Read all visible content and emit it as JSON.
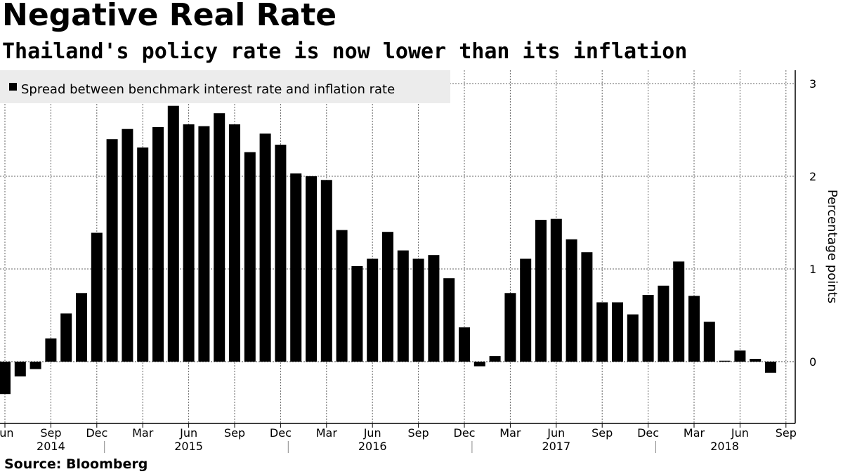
{
  "title": "Negative Real Rate",
  "subtitle": "Thailand's policy rate is now lower than its inflation",
  "source": "Source: Bloomberg",
  "chart_data": {
    "type": "bar",
    "series": [
      {
        "name": "Spread between benchmark interest rate and inflation rate",
        "color": "#000000",
        "values": [
          -0.35,
          -0.16,
          -0.08,
          0.25,
          0.52,
          0.74,
          1.39,
          2.4,
          2.51,
          2.31,
          2.53,
          2.76,
          2.56,
          2.54,
          2.68,
          2.56,
          2.26,
          2.46,
          2.34,
          2.03,
          2.0,
          1.96,
          1.42,
          1.03,
          1.11,
          1.4,
          1.2,
          1.11,
          1.15,
          0.9,
          0.37,
          -0.05,
          0.06,
          0.74,
          1.11,
          1.53,
          1.54,
          1.32,
          1.18,
          0.64,
          0.64,
          0.51,
          0.72,
          0.82,
          1.08,
          0.71,
          0.43,
          0.01,
          0.12,
          0.03,
          -0.12
        ]
      }
    ],
    "x_start": "2014-06",
    "x_end": "2018-08",
    "x_tick_labels": [
      {
        "label": "Jun",
        "month": "2014-06"
      },
      {
        "label": "Sep",
        "month": "2014-09"
      },
      {
        "label": "Dec",
        "month": "2014-12"
      },
      {
        "label": "Mar",
        "month": "2015-03"
      },
      {
        "label": "Jun",
        "month": "2015-06"
      },
      {
        "label": "Sep",
        "month": "2015-09"
      },
      {
        "label": "Dec",
        "month": "2015-12"
      },
      {
        "label": "Mar",
        "month": "2016-03"
      },
      {
        "label": "Jun",
        "month": "2016-06"
      },
      {
        "label": "Sep",
        "month": "2016-09"
      },
      {
        "label": "Dec",
        "month": "2016-12"
      },
      {
        "label": "Mar",
        "month": "2017-03"
      },
      {
        "label": "Jun",
        "month": "2017-06"
      },
      {
        "label": "Sep",
        "month": "2017-09"
      },
      {
        "label": "Dec",
        "month": "2017-12"
      },
      {
        "label": "Mar",
        "month": "2018-03"
      },
      {
        "label": "Jun",
        "month": "2018-06"
      },
      {
        "label": "Sep",
        "month": "2018-09"
      }
    ],
    "x_year_labels": [
      {
        "label": "2014",
        "month": "2014-09"
      },
      {
        "label": "2015",
        "month": "2015-06"
      },
      {
        "label": "2016",
        "month": "2016-06"
      },
      {
        "label": "2017",
        "month": "2017-06"
      },
      {
        "label": "2018",
        "month": "2018-05"
      }
    ],
    "ylabel": "Percentage points",
    "ylim": [
      -0.68,
      3.1
    ],
    "y_ticks": [
      0,
      1,
      2,
      3
    ],
    "y_axis_side": "right",
    "grid": true,
    "legend_position": "top-left"
  }
}
